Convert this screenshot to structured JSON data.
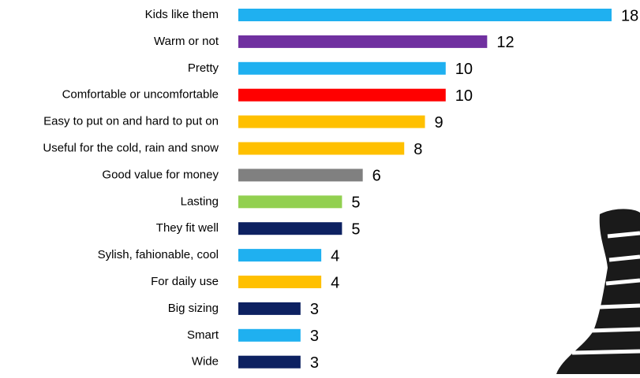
{
  "chart_data": {
    "type": "bar",
    "orientation": "horizontal",
    "categories": [
      "Kids like them",
      "Warm or not",
      "Pretty",
      "Comfortable or uncomfortable",
      "Easy to put on and hard to put on",
      "Useful for the cold, rain and snow",
      "Good value for money",
      "Lasting",
      "They fit well",
      "Sylish, fahionable, cool",
      "For daily use",
      "Big sizing",
      "Smart",
      "Wide"
    ],
    "values": [
      18,
      12,
      10,
      10,
      9,
      8,
      6,
      5,
      5,
      4,
      4,
      3,
      3,
      3
    ],
    "colors": [
      "#1fb0f0",
      "#7030a0",
      "#1fb0f0",
      "#ff0000",
      "#ffc000",
      "#ffc000",
      "#808080",
      "#92d050",
      "#0d2161",
      "#1fb0f0",
      "#ffc000",
      "#0d2161",
      "#1fb0f0",
      "#0d2161"
    ]
  }
}
